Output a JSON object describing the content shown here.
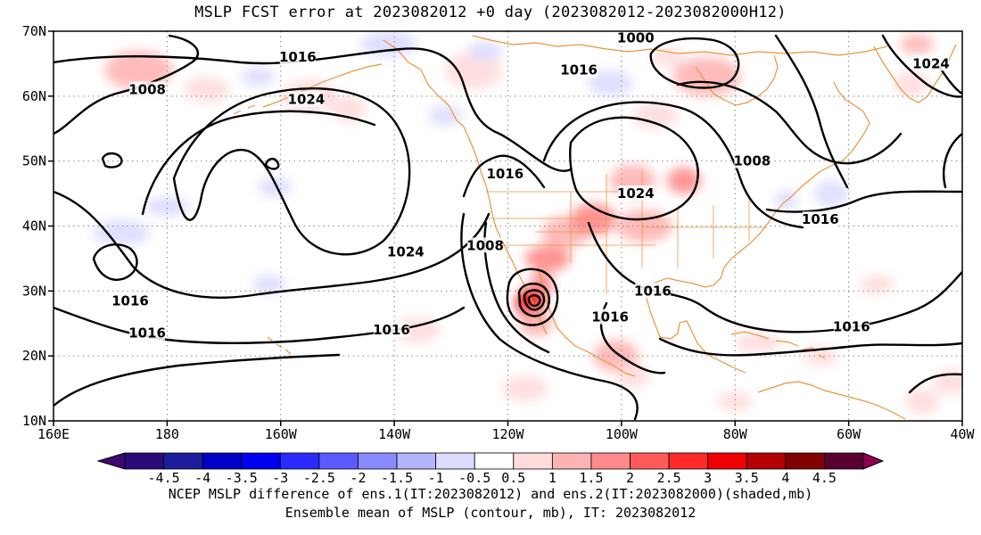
{
  "title": "MSLP FCST error at 2023082012 +0 day (2023082012-2023082000H12)",
  "caption_line1": "NCEP MSLP difference of ens.1(IT:2023082012) and ens.2(IT:2023082000)(shaded,mb)",
  "caption_line2": "Ensemble mean of MSLP (contour, mb), IT: 2023082012",
  "axes": {
    "lon_range": [
      160,
      320
    ],
    "lat_range": [
      10,
      70
    ],
    "x_ticks": [
      {
        "lon": 160,
        "label": "160E"
      },
      {
        "lon": 180,
        "label": "180"
      },
      {
        "lon": 200,
        "label": "160W"
      },
      {
        "lon": 220,
        "label": "140W"
      },
      {
        "lon": 240,
        "label": "120W"
      },
      {
        "lon": 260,
        "label": "100W"
      },
      {
        "lon": 280,
        "label": "80W"
      },
      {
        "lon": 300,
        "label": "60W"
      },
      {
        "lon": 320,
        "label": "40W"
      }
    ],
    "y_ticks": [
      {
        "lat": 10,
        "label": "10N"
      },
      {
        "lat": 20,
        "label": "20N"
      },
      {
        "lat": 30,
        "label": "30N"
      },
      {
        "lat": 40,
        "label": "40N"
      },
      {
        "lat": 50,
        "label": "50N"
      },
      {
        "lat": 60,
        "label": "60N"
      },
      {
        "lat": 70,
        "label": "70N"
      }
    ],
    "grid": "dotted"
  },
  "colorbar": {
    "labels": [
      "-4.5",
      "-4",
      "-3.5",
      "-3",
      "-2.5",
      "-2",
      "-1.5",
      "-1",
      "-0.5",
      "0.5",
      "1",
      "1.5",
      "2",
      "2.5",
      "3",
      "3.5",
      "4",
      "4.5"
    ],
    "colors": [
      "#2a0a78",
      "#1c1c9c",
      "#0000c8",
      "#0000f0",
      "#2a2aff",
      "#5a5aff",
      "#8a8aff",
      "#b4b4ff",
      "#dcdcff",
      "#ffffff",
      "#ffdcdc",
      "#ffb4b4",
      "#ff8a8a",
      "#ff5a5a",
      "#ff2a2a",
      "#f00000",
      "#b40000",
      "#820000",
      "#5a0030"
    ],
    "extend_left_color": "#3c0a6e",
    "extend_right_color": "#8c0050"
  },
  "contour_labels": [
    {
      "text": "1008",
      "lon": 176.5,
      "lat": 61.0
    },
    {
      "text": "1016",
      "lon": 203.0,
      "lat": 66.0
    },
    {
      "text": "1024",
      "lon": 204.5,
      "lat": 59.5
    },
    {
      "text": "1000",
      "lon": 262.5,
      "lat": 69.0
    },
    {
      "text": "1016",
      "lon": 252.5,
      "lat": 64.0
    },
    {
      "text": "1024",
      "lon": 314.5,
      "lat": 65.0
    },
    {
      "text": "1016",
      "lon": 239.5,
      "lat": 48.0
    },
    {
      "text": "1024",
      "lon": 262.5,
      "lat": 45.0
    },
    {
      "text": "1008",
      "lon": 283.0,
      "lat": 50.0
    },
    {
      "text": "1016",
      "lon": 295.0,
      "lat": 41.0
    },
    {
      "text": "1024",
      "lon": 222.0,
      "lat": 36.0
    },
    {
      "text": "1008",
      "lon": 236.0,
      "lat": 37.0
    },
    {
      "text": "1016",
      "lon": 173.5,
      "lat": 28.5
    },
    {
      "text": "1016",
      "lon": 176.5,
      "lat": 23.5
    },
    {
      "text": "1016",
      "lon": 219.5,
      "lat": 24.0
    },
    {
      "text": "1016",
      "lon": 265.5,
      "lat": 30.0
    },
    {
      "text": "1016",
      "lon": 258.0,
      "lat": 26.0
    },
    {
      "text": "1016",
      "lon": 300.5,
      "lat": 24.5
    }
  ],
  "shading_blobs": [
    {
      "lon": 175,
      "lat": 64,
      "rx": 6,
      "ry": 3,
      "value": 1.0
    },
    {
      "lon": 187,
      "lat": 61,
      "rx": 4,
      "ry": 2,
      "value": 0.8
    },
    {
      "lon": 205,
      "lat": 60,
      "rx": 5,
      "ry": 2.5,
      "value": 0.8
    },
    {
      "lon": 212,
      "lat": 58,
      "rx": 3,
      "ry": 2,
      "value": 0.9
    },
    {
      "lon": 234,
      "lat": 64,
      "rx": 5,
      "ry": 3,
      "value": 0.8
    },
    {
      "lon": 236,
      "lat": 67,
      "rx": 3,
      "ry": 1.5,
      "value": -0.7
    },
    {
      "lon": 219,
      "lat": 68,
      "rx": 5,
      "ry": 2,
      "value": -0.7
    },
    {
      "lon": 258,
      "lat": 62,
      "rx": 4,
      "ry": 2,
      "value": -0.8
    },
    {
      "lon": 275,
      "lat": 63,
      "rx": 6,
      "ry": 3,
      "value": 1.2
    },
    {
      "lon": 268,
      "lat": 66,
      "rx": 3,
      "ry": 1.5,
      "value": 0.9
    },
    {
      "lon": 312,
      "lat": 68,
      "rx": 3,
      "ry": 1.5,
      "value": 1.4
    },
    {
      "lon": 311,
      "lat": 62,
      "rx": 3,
      "ry": 2,
      "value": 0.8
    },
    {
      "lon": 266,
      "lat": 57,
      "rx": 4,
      "ry": 2,
      "value": 0.7
    },
    {
      "lon": 172,
      "lat": 39,
      "rx": 5,
      "ry": 2,
      "value": -0.8
    },
    {
      "lon": 180,
      "lat": 43,
      "rx": 4,
      "ry": 1.5,
      "value": -0.6
    },
    {
      "lon": 199,
      "lat": 46,
      "rx": 3,
      "ry": 1.5,
      "value": -0.6
    },
    {
      "lon": 198,
      "lat": 31,
      "rx": 3,
      "ry": 1.5,
      "value": -0.6
    },
    {
      "lon": 224,
      "lat": 24,
      "rx": 4,
      "ry": 2,
      "value": 0.6
    },
    {
      "lon": 250,
      "lat": 39,
      "rx": 4,
      "ry": 2.5,
      "value": 1.3
    },
    {
      "lon": 255,
      "lat": 41,
      "rx": 4,
      "ry": 2.5,
      "value": 1.6
    },
    {
      "lon": 247,
      "lat": 35,
      "rx": 4,
      "ry": 2,
      "value": 1.8
    },
    {
      "lon": 262,
      "lat": 47,
      "rx": 4,
      "ry": 2.5,
      "value": 1.3
    },
    {
      "lon": 271,
      "lat": 47,
      "rx": 3,
      "ry": 2,
      "value": 1.5
    },
    {
      "lon": 264,
      "lat": 40,
      "rx": 5,
      "ry": 2.5,
      "value": 1.1
    },
    {
      "lon": 246,
      "lat": 31,
      "rx": 2,
      "ry": 2,
      "value": 1.5
    },
    {
      "lon": 244,
      "lat": 28,
      "rx": 2.5,
      "ry": 2.5,
      "value": 3.0
    },
    {
      "lon": 245,
      "lat": 25,
      "rx": 3,
      "ry": 2,
      "value": 1.2
    },
    {
      "lon": 259,
      "lat": 20,
      "rx": 4,
      "ry": 2.5,
      "value": 1.0
    },
    {
      "lon": 262,
      "lat": 17,
      "rx": 3,
      "ry": 2,
      "value": 0.7
    },
    {
      "lon": 284,
      "lat": 22,
      "rx": 4,
      "ry": 1.5,
      "value": 0.6
    },
    {
      "lon": 295,
      "lat": 20,
      "rx": 3,
      "ry": 1.5,
      "value": 0.7
    },
    {
      "lon": 305,
      "lat": 31,
      "rx": 3,
      "ry": 1.5,
      "value": 0.7
    },
    {
      "lon": 297,
      "lat": 45,
      "rx": 3,
      "ry": 2,
      "value": -0.7
    },
    {
      "lon": 289,
      "lat": 44,
      "rx": 2,
      "ry": 1.5,
      "value": -0.6
    },
    {
      "lon": 318,
      "lat": 16,
      "rx": 3,
      "ry": 2,
      "value": 0.7
    },
    {
      "lon": 313,
      "lat": 13,
      "rx": 3,
      "ry": 2,
      "value": 0.6
    },
    {
      "lon": 243,
      "lat": 15,
      "rx": 4,
      "ry": 2,
      "value": 0.6
    },
    {
      "lon": 280,
      "lat": 13,
      "rx": 3,
      "ry": 1.5,
      "value": 0.6
    },
    {
      "lon": 196,
      "lat": 63,
      "rx": 3,
      "ry": 1.5,
      "value": -0.6
    },
    {
      "lon": 229,
      "lat": 57,
      "rx": 3,
      "ry": 1.5,
      "value": -0.6
    }
  ]
}
